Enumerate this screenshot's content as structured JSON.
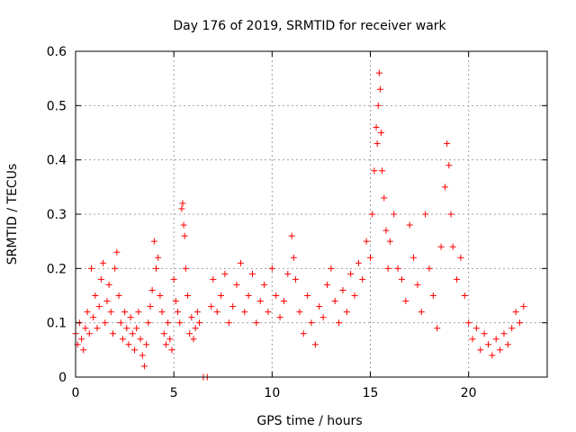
{
  "chart_data": {
    "type": "scatter",
    "title": "Day 176 of 2019, SRMTID for receiver wark",
    "xlabel": "GPS time / hours",
    "ylabel": "SRMTID / TECUs",
    "xlim": [
      0,
      24
    ],
    "ylim": [
      0,
      0.6
    ],
    "xticks": [
      0,
      5,
      10,
      15,
      20
    ],
    "yticks": [
      0,
      0.1,
      0.2,
      0.3,
      0.4,
      0.5,
      0.6
    ],
    "xtick_labels": [
      "0",
      "5",
      "10",
      "15",
      "20"
    ],
    "ytick_labels": [
      "0",
      "0.1",
      "0.2",
      "0.3",
      "0.4",
      "0.5",
      "0.6"
    ],
    "grid": true,
    "marker": "+",
    "color": "#ff0000",
    "series": [
      {
        "name": "SRMTID",
        "points": [
          [
            0.0,
            0.08
          ],
          [
            0.1,
            0.06
          ],
          [
            0.2,
            0.1
          ],
          [
            0.3,
            0.07
          ],
          [
            0.4,
            0.05
          ],
          [
            0.5,
            0.09
          ],
          [
            0.6,
            0.12
          ],
          [
            0.7,
            0.08
          ],
          [
            0.8,
            0.2
          ],
          [
            0.9,
            0.11
          ],
          [
            1.0,
            0.15
          ],
          [
            1.1,
            0.09
          ],
          [
            1.2,
            0.13
          ],
          [
            1.3,
            0.18
          ],
          [
            1.4,
            0.21
          ],
          [
            1.5,
            0.1
          ],
          [
            1.6,
            0.14
          ],
          [
            1.7,
            0.17
          ],
          [
            1.8,
            0.12
          ],
          [
            1.9,
            0.08
          ],
          [
            2.0,
            0.2
          ],
          [
            2.1,
            0.23
          ],
          [
            2.2,
            0.15
          ],
          [
            2.3,
            0.1
          ],
          [
            2.4,
            0.07
          ],
          [
            2.5,
            0.12
          ],
          [
            2.6,
            0.09
          ],
          [
            2.7,
            0.06
          ],
          [
            2.8,
            0.11
          ],
          [
            2.9,
            0.08
          ],
          [
            3.0,
            0.05
          ],
          [
            3.1,
            0.09
          ],
          [
            3.2,
            0.12
          ],
          [
            3.3,
            0.07
          ],
          [
            3.4,
            0.04
          ],
          [
            3.5,
            0.02
          ],
          [
            3.6,
            0.06
          ],
          [
            3.7,
            0.1
          ],
          [
            3.8,
            0.13
          ],
          [
            3.9,
            0.16
          ],
          [
            4.0,
            0.25
          ],
          [
            4.1,
            0.2
          ],
          [
            4.2,
            0.22
          ],
          [
            4.3,
            0.15
          ],
          [
            4.4,
            0.12
          ],
          [
            4.5,
            0.08
          ],
          [
            4.6,
            0.06
          ],
          [
            4.7,
            0.1
          ],
          [
            4.8,
            0.07
          ],
          [
            4.9,
            0.05
          ],
          [
            5.0,
            0.18
          ],
          [
            5.1,
            0.14
          ],
          [
            5.2,
            0.12
          ],
          [
            5.3,
            0.1
          ],
          [
            5.4,
            0.31
          ],
          [
            5.45,
            0.32
          ],
          [
            5.5,
            0.28
          ],
          [
            5.55,
            0.26
          ],
          [
            5.6,
            0.2
          ],
          [
            5.7,
            0.15
          ],
          [
            5.8,
            0.08
          ],
          [
            5.9,
            0.11
          ],
          [
            6.0,
            0.07
          ],
          [
            6.1,
            0.09
          ],
          [
            6.2,
            0.12
          ],
          [
            6.3,
            0.1
          ],
          [
            6.5,
            0.0
          ],
          [
            6.7,
            0.0
          ],
          [
            6.9,
            0.13
          ],
          [
            7.0,
            0.18
          ],
          [
            7.2,
            0.12
          ],
          [
            7.4,
            0.15
          ],
          [
            7.6,
            0.19
          ],
          [
            7.8,
            0.1
          ],
          [
            8.0,
            0.13
          ],
          [
            8.2,
            0.17
          ],
          [
            8.4,
            0.21
          ],
          [
            8.6,
            0.12
          ],
          [
            8.8,
            0.15
          ],
          [
            9.0,
            0.19
          ],
          [
            9.2,
            0.1
          ],
          [
            9.4,
            0.14
          ],
          [
            9.6,
            0.17
          ],
          [
            9.8,
            0.12
          ],
          [
            10.0,
            0.2
          ],
          [
            10.2,
            0.15
          ],
          [
            10.4,
            0.11
          ],
          [
            10.6,
            0.14
          ],
          [
            10.8,
            0.19
          ],
          [
            11.0,
            0.26
          ],
          [
            11.1,
            0.22
          ],
          [
            11.2,
            0.18
          ],
          [
            11.4,
            0.12
          ],
          [
            11.6,
            0.08
          ],
          [
            11.8,
            0.15
          ],
          [
            12.0,
            0.1
          ],
          [
            12.2,
            0.06
          ],
          [
            12.4,
            0.13
          ],
          [
            12.6,
            0.11
          ],
          [
            12.8,
            0.17
          ],
          [
            13.0,
            0.2
          ],
          [
            13.2,
            0.14
          ],
          [
            13.4,
            0.1
          ],
          [
            13.6,
            0.16
          ],
          [
            13.8,
            0.12
          ],
          [
            14.0,
            0.19
          ],
          [
            14.2,
            0.15
          ],
          [
            14.4,
            0.21
          ],
          [
            14.6,
            0.18
          ],
          [
            14.8,
            0.25
          ],
          [
            15.0,
            0.22
          ],
          [
            15.1,
            0.3
          ],
          [
            15.2,
            0.38
          ],
          [
            15.3,
            0.46
          ],
          [
            15.35,
            0.43
          ],
          [
            15.4,
            0.5
          ],
          [
            15.45,
            0.56
          ],
          [
            15.5,
            0.53
          ],
          [
            15.55,
            0.45
          ],
          [
            15.6,
            0.38
          ],
          [
            15.7,
            0.33
          ],
          [
            15.8,
            0.27
          ],
          [
            15.9,
            0.2
          ],
          [
            16.0,
            0.25
          ],
          [
            16.2,
            0.3
          ],
          [
            16.4,
            0.2
          ],
          [
            16.6,
            0.18
          ],
          [
            16.8,
            0.14
          ],
          [
            17.0,
            0.28
          ],
          [
            17.2,
            0.22
          ],
          [
            17.4,
            0.17
          ],
          [
            17.6,
            0.12
          ],
          [
            17.8,
            0.3
          ],
          [
            18.0,
            0.2
          ],
          [
            18.2,
            0.15
          ],
          [
            18.4,
            0.09
          ],
          [
            18.6,
            0.24
          ],
          [
            18.8,
            0.35
          ],
          [
            18.9,
            0.43
          ],
          [
            19.0,
            0.39
          ],
          [
            19.1,
            0.3
          ],
          [
            19.2,
            0.24
          ],
          [
            19.4,
            0.18
          ],
          [
            19.6,
            0.22
          ],
          [
            19.8,
            0.15
          ],
          [
            20.0,
            0.1
          ],
          [
            20.2,
            0.07
          ],
          [
            20.4,
            0.09
          ],
          [
            20.6,
            0.05
          ],
          [
            20.8,
            0.08
          ],
          [
            21.0,
            0.06
          ],
          [
            21.2,
            0.04
          ],
          [
            21.4,
            0.07
          ],
          [
            21.6,
            0.05
          ],
          [
            21.8,
            0.08
          ],
          [
            22.0,
            0.06
          ],
          [
            22.2,
            0.09
          ],
          [
            22.4,
            0.12
          ],
          [
            22.6,
            0.1
          ],
          [
            22.8,
            0.13
          ]
        ]
      }
    ]
  }
}
